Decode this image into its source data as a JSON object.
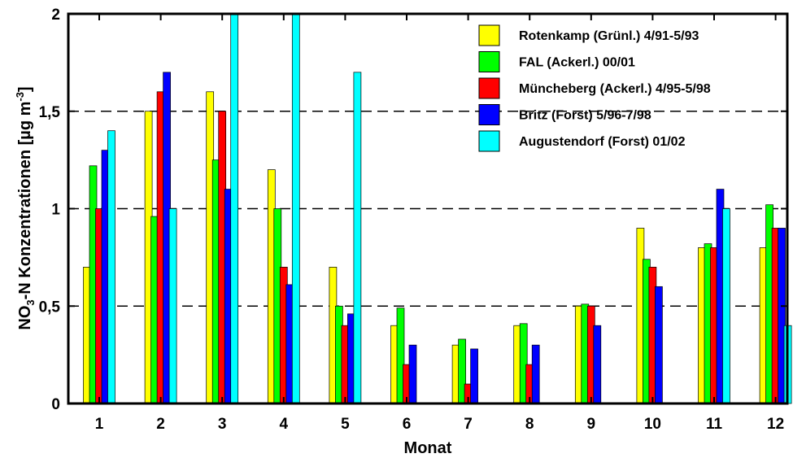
{
  "chart_data": {
    "type": "bar",
    "title": "",
    "xlabel": "Monat",
    "ylabel_parts": [
      "NO",
      "3",
      "-N Konzentrationen [µg m",
      "-3",
      "]"
    ],
    "ylim": [
      0,
      2
    ],
    "y_ticks": [
      0,
      0.5,
      1,
      1.5,
      2
    ],
    "y_tick_labels": [
      "0",
      "0,5",
      "1",
      "1,5",
      "2"
    ],
    "grid": "horizontal dashed at 0.5, 1, 1.5",
    "legend_position": "top-right",
    "categories": [
      "1",
      "2",
      "3",
      "4",
      "5",
      "6",
      "7",
      "8",
      "9",
      "10",
      "11",
      "12"
    ],
    "series": [
      {
        "name": "Rotenkamp (Grünl.) 4/91-5/93",
        "color": "#ffff00",
        "values": [
          0.7,
          1.5,
          1.6,
          1.2,
          0.7,
          0.4,
          0.3,
          0.4,
          0.5,
          0.9,
          0.8,
          0.8
        ]
      },
      {
        "name": "FAL (Ackerl.) 00/01",
        "color": "#00ff00",
        "values": [
          1.22,
          0.96,
          1.25,
          1.0,
          0.5,
          0.49,
          0.33,
          0.41,
          0.51,
          0.74,
          0.82,
          1.02
        ]
      },
      {
        "name": "Müncheberg (Ackerl.) 4/95-5/98",
        "color": "#ff0000",
        "values": [
          1.0,
          1.6,
          1.5,
          0.7,
          0.4,
          0.2,
          0.1,
          0.2,
          0.5,
          0.7,
          0.8,
          0.9
        ]
      },
      {
        "name": "Britz (Forst) 5/96-7/98",
        "color": "#0000ff",
        "values": [
          1.3,
          1.7,
          1.1,
          0.61,
          0.46,
          0.3,
          0.28,
          0.3,
          0.4,
          0.6,
          1.1,
          0.9
        ]
      },
      {
        "name": "Augustendorf (Forst) 01/02",
        "color": "#00ffff",
        "values": [
          1.4,
          1.0,
          2.0,
          2.0,
          1.7,
          null,
          null,
          null,
          null,
          null,
          1.0,
          0.4
        ]
      }
    ]
  }
}
